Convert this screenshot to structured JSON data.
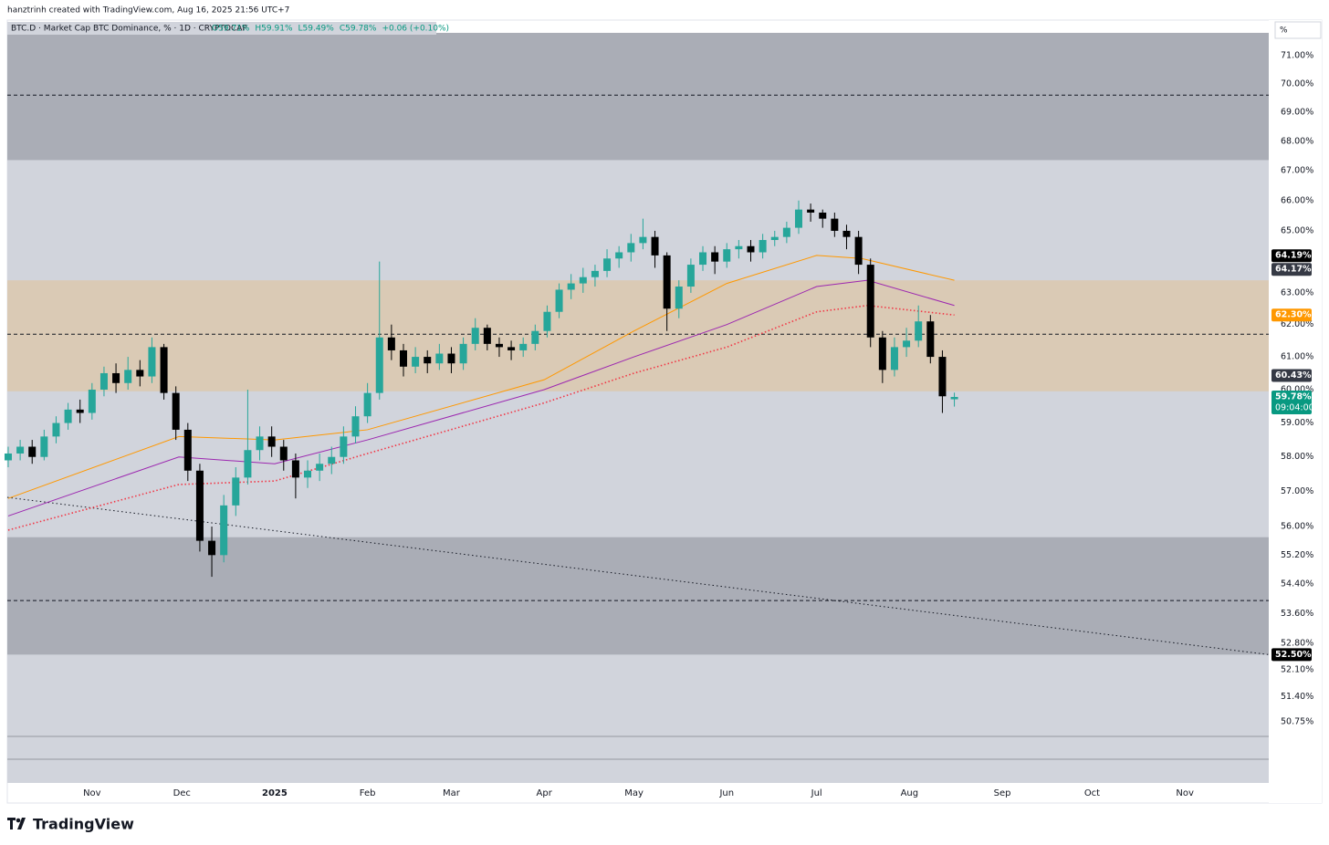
{
  "header": {
    "caption": "hanztrinh created with TradingView.com, Aug 16, 2025 21:56 UTC+7",
    "symbol": "BTC.D · Market Cap BTC Dominance, % · 1D · CRYPTOCAP",
    "ohlc": [
      "O59.71%",
      "H59.91%",
      "L59.49%",
      "C59.78%",
      "+0.06 (+0.10%)"
    ],
    "scale_mode": "%"
  },
  "chart_data": {
    "type": "candlestick",
    "log_scale": true,
    "grid": false,
    "up_color": "#26a69a",
    "down_color": "#000000",
    "x": [
      3,
      7,
      11,
      15,
      19,
      23,
      27,
      31,
      35,
      39,
      43,
      47,
      51,
      55,
      59,
      63,
      67,
      71,
      75,
      79,
      83,
      87,
      91,
      95,
      99,
      103,
      107,
      111,
      115,
      119,
      123,
      127,
      131,
      135,
      139,
      143,
      147,
      151,
      155,
      159,
      163,
      167,
      171,
      175,
      179,
      183,
      187,
      191,
      195,
      199,
      203,
      207,
      211,
      215,
      219,
      223,
      227,
      231,
      235,
      239,
      243,
      247,
      251,
      255,
      259,
      263,
      267,
      271,
      275,
      279,
      283,
      287,
      291,
      295,
      299,
      303,
      307,
      311,
      315,
      319
    ],
    "open": [
      57.9,
      58.1,
      58.3,
      58.0,
      58.6,
      59.0,
      59.4,
      59.3,
      60.0,
      60.5,
      60.2,
      60.6,
      60.4,
      61.3,
      59.9,
      58.8,
      57.6,
      55.6,
      55.2,
      56.6,
      57.4,
      58.2,
      58.6,
      58.3,
      57.9,
      57.4,
      57.6,
      57.8,
      58.0,
      58.6,
      59.2,
      59.9,
      61.6,
      61.2,
      60.7,
      61.0,
      60.8,
      61.1,
      60.8,
      61.4,
      61.9,
      61.4,
      61.3,
      61.2,
      61.4,
      61.8,
      62.4,
      63.1,
      63.3,
      63.5,
      63.7,
      64.1,
      64.3,
      64.6,
      64.8,
      64.2,
      62.5,
      63.2,
      63.9,
      64.3,
      64.0,
      64.4,
      64.5,
      64.3,
      64.7,
      64.8,
      65.1,
      65.7,
      65.6,
      65.4,
      65.0,
      64.8,
      63.9,
      61.6,
      60.6,
      61.3,
      61.5,
      62.1,
      61.0,
      59.71
    ],
    "high": [
      58.3,
      58.5,
      58.5,
      58.8,
      59.2,
      59.6,
      59.7,
      60.2,
      60.7,
      60.8,
      61.0,
      60.9,
      61.6,
      61.4,
      60.1,
      59.0,
      57.8,
      56.0,
      56.9,
      57.7,
      60.0,
      58.9,
      58.9,
      58.5,
      58.1,
      57.9,
      58.1,
      58.3,
      58.9,
      59.5,
      60.2,
      64.0,
      62.0,
      61.4,
      61.3,
      61.2,
      61.4,
      61.3,
      61.6,
      62.2,
      62.0,
      61.6,
      61.5,
      61.6,
      62.0,
      62.6,
      63.3,
      63.6,
      63.8,
      63.9,
      64.4,
      64.5,
      64.9,
      65.4,
      65.0,
      64.3,
      63.4,
      64.1,
      64.5,
      64.5,
      64.6,
      64.7,
      64.7,
      64.9,
      65.0,
      65.3,
      66.0,
      65.9,
      65.7,
      65.6,
      65.2,
      65.0,
      64.1,
      61.8,
      61.6,
      61.9,
      62.6,
      62.3,
      61.2,
      59.91
    ],
    "low": [
      57.7,
      57.9,
      57.8,
      57.9,
      58.4,
      58.8,
      59.0,
      59.1,
      59.8,
      59.9,
      60.0,
      60.1,
      60.2,
      59.7,
      58.5,
      57.3,
      55.3,
      54.6,
      55.0,
      56.3,
      57.2,
      57.9,
      58.0,
      57.6,
      56.8,
      57.1,
      57.3,
      57.5,
      57.8,
      58.4,
      59.0,
      59.7,
      60.9,
      60.4,
      60.5,
      60.5,
      60.6,
      60.5,
      60.6,
      61.2,
      61.2,
      61.0,
      60.9,
      61.0,
      61.2,
      61.6,
      62.2,
      62.8,
      63.0,
      63.2,
      63.5,
      63.8,
      64.0,
      64.4,
      63.8,
      61.8,
      62.2,
      63.0,
      63.7,
      63.6,
      63.8,
      64.1,
      64.0,
      64.1,
      64.5,
      64.6,
      64.9,
      65.3,
      65.1,
      64.8,
      64.4,
      63.6,
      61.3,
      60.2,
      60.4,
      61.0,
      61.3,
      60.8,
      59.3,
      59.49
    ],
    "close": [
      58.1,
      58.3,
      58.0,
      58.6,
      59.0,
      59.4,
      59.3,
      60.0,
      60.5,
      60.2,
      60.6,
      60.4,
      61.3,
      59.9,
      58.8,
      57.6,
      55.6,
      55.2,
      56.6,
      57.4,
      58.2,
      58.6,
      58.3,
      57.9,
      57.4,
      57.6,
      57.8,
      58.0,
      58.6,
      59.2,
      59.9,
      61.6,
      61.2,
      60.7,
      61.0,
      60.8,
      61.1,
      60.8,
      61.4,
      61.9,
      61.4,
      61.3,
      61.2,
      61.4,
      61.8,
      62.4,
      63.1,
      63.3,
      63.5,
      63.7,
      64.1,
      64.3,
      64.6,
      64.8,
      64.2,
      62.5,
      63.2,
      63.9,
      64.3,
      64.0,
      64.4,
      64.5,
      64.3,
      64.7,
      64.8,
      65.1,
      65.7,
      65.6,
      65.4,
      65.0,
      64.8,
      63.9,
      61.6,
      60.6,
      61.3,
      61.5,
      62.1,
      61.0,
      59.8,
      59.78
    ],
    "series": [
      {
        "color": "#ff9800",
        "style": "solid",
        "x": [
          3,
          60,
          92,
          123,
          182,
          212,
          243,
          273,
          288,
          319
        ],
        "values": [
          56.8,
          58.6,
          58.5,
          58.8,
          60.3,
          61.8,
          63.3,
          64.2,
          64.1,
          63.4
        ]
      },
      {
        "color": "#9c27b0",
        "style": "solid",
        "x": [
          3,
          60,
          92,
          123,
          182,
          212,
          243,
          273,
          290,
          319
        ],
        "values": [
          56.3,
          58.0,
          57.8,
          58.5,
          60.0,
          61.0,
          62.0,
          63.2,
          63.4,
          62.6
        ]
      },
      {
        "color": "#f23645",
        "style": "dotted",
        "x": [
          3,
          60,
          92,
          123,
          182,
          212,
          243,
          273,
          290,
          319
        ],
        "values": [
          55.9,
          57.2,
          57.3,
          58.1,
          59.6,
          60.5,
          61.3,
          62.4,
          62.6,
          62.3
        ]
      }
    ],
    "zones": [
      {
        "from": 67.36,
        "to": 71.82,
        "color": "#a3a6af"
      },
      {
        "from": 59.95,
        "to": 63.4,
        "color": "#dcc8ae"
      },
      {
        "from": 52.5,
        "to": 55.7,
        "color": "#a3a6af"
      }
    ],
    "levels": [
      69.6,
      61.7,
      53.95
    ],
    "trendline": {
      "x": [
        2.7,
        424
      ],
      "values": [
        56.83,
        52.5
      ]
    },
    "xlim": [
      2.7,
      424
    ],
    "ylim": [
      50.38,
      71.82
    ],
    "xticks": [
      {
        "value": 31,
        "label": "Nov"
      },
      {
        "value": 61,
        "label": "Dec"
      },
      {
        "value": 92,
        "label": "2025"
      },
      {
        "value": 123,
        "label": "Feb"
      },
      {
        "value": 151,
        "label": "Mar"
      },
      {
        "value": 182,
        "label": "Apr"
      },
      {
        "value": 212,
        "label": "May"
      },
      {
        "value": 243,
        "label": "Jun"
      },
      {
        "value": 273,
        "label": "Jul"
      },
      {
        "value": 304,
        "label": "Aug"
      },
      {
        "value": 335,
        "label": "Sep"
      },
      {
        "value": 365,
        "label": "Oct"
      },
      {
        "value": 396,
        "label": "Nov"
      }
    ],
    "yticks": [
      {
        "value": 71,
        "label": "71.00%"
      },
      {
        "value": 70,
        "label": "70.00%"
      },
      {
        "value": 69,
        "label": "69.00%"
      },
      {
        "value": 68,
        "label": "68.00%"
      },
      {
        "value": 67,
        "label": "67.00%"
      },
      {
        "value": 66,
        "label": "66.00%"
      },
      {
        "value": 65,
        "label": "65.00%"
      },
      {
        "value": 63,
        "label": "63.00%"
      },
      {
        "value": 62,
        "label": "62.00%"
      },
      {
        "value": 61,
        "label": "61.00%"
      },
      {
        "value": 60,
        "label": "60.00%"
      },
      {
        "value": 59,
        "label": "59.00%"
      },
      {
        "value": 58,
        "label": "58.00%"
      },
      {
        "value": 57,
        "label": "57.00%"
      },
      {
        "value": 56,
        "label": "56.00%"
      },
      {
        "value": 55.2,
        "label": "55.20%"
      },
      {
        "value": 54.4,
        "label": "54.40%"
      },
      {
        "value": 53.6,
        "label": "53.60%"
      },
      {
        "value": 52.8,
        "label": "52.80%"
      },
      {
        "value": 52.1,
        "label": "52.10%"
      },
      {
        "value": 51.4,
        "label": "51.40%"
      },
      {
        "value": 50.75,
        "label": "50.75%"
      }
    ],
    "price_labels": [
      {
        "value": 64.19,
        "label": "64.19%",
        "color": "#000000"
      },
      {
        "value": 64.17,
        "label": "64.17%",
        "color": "#363a45"
      },
      {
        "value": 62.3,
        "label": "62.30%",
        "color": "#ff9800"
      },
      {
        "value": 60.43,
        "label": "60.43%",
        "color": "#363a45"
      },
      {
        "value": 59.78,
        "label": "59.78%",
        "sublabel": "09:04:00",
        "color": "#089981"
      },
      {
        "value": 52.5,
        "label": "52.50%",
        "color": "#000000"
      }
    ]
  },
  "footer": {
    "brand": "TradingView"
  }
}
